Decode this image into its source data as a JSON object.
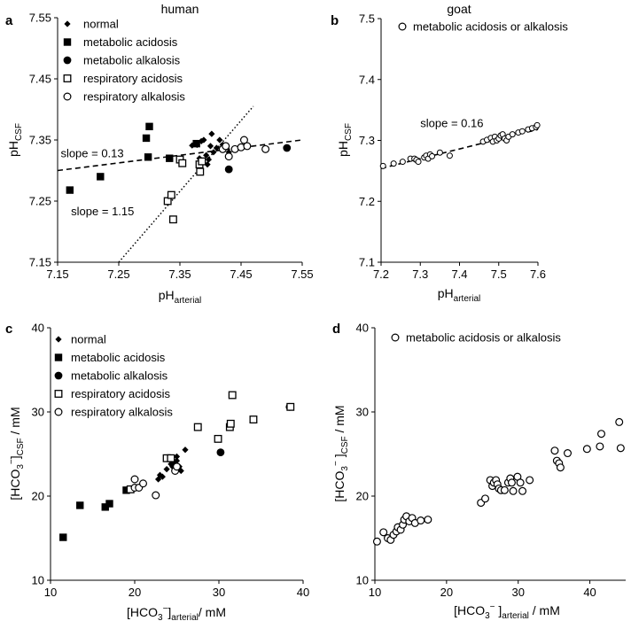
{
  "chart_data": [
    {
      "id": "a",
      "type": "scatter",
      "panel_label": "a",
      "title": "human",
      "xlabel": {
        "main": "pH",
        "sub": "arterial"
      },
      "ylabel": {
        "main": "pH",
        "sub": "CSF"
      },
      "xlim": [
        7.15,
        7.55
      ],
      "ylim": [
        7.15,
        7.55
      ],
      "xticks": [
        7.15,
        7.25,
        7.35,
        7.45,
        7.55
      ],
      "xtick_labels": [
        "7.15",
        "7.25",
        "7.35",
        "7.45",
        "7.55"
      ],
      "yticks": [
        7.15,
        7.25,
        7.35,
        7.45,
        7.55
      ],
      "ytick_labels": [
        "7.15",
        "7.25",
        "7.35",
        "7.45",
        "7.55"
      ],
      "legend": [
        {
          "marker": "diamond",
          "label": "normal"
        },
        {
          "marker": "square-filled",
          "label": "metabolic acidosis"
        },
        {
          "marker": "circle-filled",
          "label": "metabolic alkalosis"
        },
        {
          "marker": "square-open",
          "label": "respiratory acidosis"
        },
        {
          "marker": "circle-open",
          "label": "respiratory alkalosis"
        }
      ],
      "series": [
        {
          "name": "normal",
          "marker": "diamond",
          "points": [
            [
              7.37,
              7.341
            ],
            [
              7.378,
              7.342
            ],
            [
              7.385,
              7.348
            ],
            [
              7.389,
              7.35
            ],
            [
              7.393,
              7.325
            ],
            [
              7.395,
              7.31
            ],
            [
              7.397,
              7.318
            ],
            [
              7.4,
              7.34
            ],
            [
              7.402,
              7.36
            ],
            [
              7.405,
              7.33
            ],
            [
              7.41,
              7.337
            ],
            [
              7.415,
              7.35
            ],
            [
              7.42,
              7.342
            ],
            [
              7.43,
              7.33
            ],
            [
              7.382,
              7.32
            ]
          ]
        },
        {
          "name": "metabolic acidosis",
          "marker": "square-filled",
          "points": [
            [
              7.17,
              7.268
            ],
            [
              7.22,
              7.29
            ],
            [
              7.295,
              7.353
            ],
            [
              7.3,
              7.372
            ],
            [
              7.298,
              7.322
            ],
            [
              7.333,
              7.32
            ],
            [
              7.377,
              7.344
            ]
          ]
        },
        {
          "name": "metabolic alkalosis",
          "marker": "circle-filled",
          "points": [
            [
              7.43,
              7.302
            ],
            [
              7.525,
              7.337
            ]
          ]
        },
        {
          "name": "respiratory acidosis",
          "marker": "square-open",
          "points": [
            [
              7.33,
              7.25
            ],
            [
              7.336,
              7.26
            ],
            [
              7.339,
              7.22
            ],
            [
              7.35,
              7.318
            ],
            [
              7.354,
              7.312
            ],
            [
              7.382,
              7.31
            ],
            [
              7.383,
              7.298
            ],
            [
              7.386,
              7.315
            ]
          ]
        },
        {
          "name": "respiratory alkalosis",
          "marker": "circle-open",
          "points": [
            [
              7.42,
              7.335
            ],
            [
              7.425,
              7.34
            ],
            [
              7.43,
              7.323
            ],
            [
              7.44,
              7.335
            ],
            [
              7.45,
              7.338
            ],
            [
              7.455,
              7.35
            ],
            [
              7.46,
              7.34
            ],
            [
              7.49,
              7.335
            ]
          ]
        }
      ],
      "lines": [
        {
          "style": "dashed",
          "x": [
            7.15,
            7.55
          ],
          "y": [
            7.3,
            7.35
          ]
        },
        {
          "style": "dotted",
          "x": [
            7.25,
            7.47
          ],
          "y": [
            7.15,
            7.405
          ]
        }
      ],
      "annotations": [
        {
          "text": "slope = 0.13",
          "x": 7.155,
          "y": 7.322
        },
        {
          "text": "slope = 1.15",
          "x": 7.172,
          "y": 7.227
        }
      ]
    },
    {
      "id": "b",
      "type": "scatter",
      "panel_label": "b",
      "title": "goat",
      "xlabel": {
        "main": "pH",
        "sub": "arterial"
      },
      "ylabel": {
        "main": "pH",
        "sub": "CSF"
      },
      "xlim": [
        7.2,
        7.6
      ],
      "ylim": [
        7.1,
        7.5
      ],
      "xticks": [
        7.2,
        7.3,
        7.4,
        7.5,
        7.6
      ],
      "xtick_labels": [
        "7.2",
        "7.3",
        "7.4",
        "7.5",
        "7.6"
      ],
      "yticks": [
        7.1,
        7.2,
        7.3,
        7.4,
        7.5
      ],
      "ytick_labels": [
        "7.1",
        "7.2",
        "7.3",
        "7.4",
        "7.5"
      ],
      "legend": [
        {
          "marker": "circle-open",
          "label": "metabolic acidosis or alkalosis"
        }
      ],
      "series": [
        {
          "name": "metabolic acidosis or alkalosis",
          "marker": "circle-open-small",
          "points": [
            [
              7.205,
              7.258
            ],
            [
              7.232,
              7.262
            ],
            [
              7.255,
              7.265
            ],
            [
              7.275,
              7.27
            ],
            [
              7.285,
              7.27
            ],
            [
              7.29,
              7.268
            ],
            [
              7.295,
              7.265
            ],
            [
              7.31,
              7.272
            ],
            [
              7.315,
              7.275
            ],
            [
              7.32,
              7.27
            ],
            [
              7.325,
              7.277
            ],
            [
              7.33,
              7.274
            ],
            [
              7.35,
              7.28
            ],
            [
              7.375,
              7.275
            ],
            [
              7.46,
              7.298
            ],
            [
              7.47,
              7.301
            ],
            [
              7.48,
              7.304
            ],
            [
              7.485,
              7.298
            ],
            [
              7.49,
              7.306
            ],
            [
              7.495,
              7.3
            ],
            [
              7.5,
              7.303
            ],
            [
              7.505,
              7.308
            ],
            [
              7.51,
              7.31
            ],
            [
              7.515,
              7.303
            ],
            [
              7.52,
              7.3
            ],
            [
              7.525,
              7.306
            ],
            [
              7.535,
              7.31
            ],
            [
              7.55,
              7.313
            ],
            [
              7.56,
              7.315
            ],
            [
              7.575,
              7.318
            ],
            [
              7.585,
              7.32
            ],
            [
              7.595,
              7.322
            ],
            [
              7.598,
              7.325
            ]
          ]
        }
      ],
      "lines": [
        {
          "style": "dashed",
          "x": [
            7.2,
            7.6
          ],
          "y": [
            7.254,
            7.318
          ]
        }
      ],
      "annotations": [
        {
          "text": "slope = 0.16",
          "x": 7.3,
          "y": 7.322
        }
      ]
    },
    {
      "id": "c",
      "type": "scatter",
      "panel_label": "c",
      "title": "",
      "xlabel": {
        "main": "[HCO",
        "sup": "3",
        "sup2": "−",
        "after": "]",
        "sub": "arterial",
        "tail": "/ mM"
      },
      "ylabel": {
        "main": "[HCO",
        "sup": "3",
        "sup2": "−",
        "after": "]",
        "sub": "CSF",
        "tail": " / mM"
      },
      "xlim": [
        10,
        40
      ],
      "ylim": [
        10,
        40
      ],
      "xticks": [
        10,
        20,
        30,
        40
      ],
      "xtick_labels": [
        "10",
        "20",
        "30",
        "40"
      ],
      "yticks": [
        10,
        20,
        30,
        40
      ],
      "ytick_labels": [
        "10",
        "20",
        "30",
        "40"
      ],
      "legend": [
        {
          "marker": "diamond",
          "label": "normal"
        },
        {
          "marker": "square-filled",
          "label": "metabolic acidosis"
        },
        {
          "marker": "circle-filled",
          "label": "metabolic alkalosis"
        },
        {
          "marker": "square-open",
          "label": "respiratory acidosis"
        },
        {
          "marker": "circle-open",
          "label": "respiratory alkalosis"
        }
      ],
      "series": [
        {
          "name": "normal",
          "marker": "diamond",
          "points": [
            [
              22.8,
              22.0
            ],
            [
              23.0,
              22.5
            ],
            [
              23.8,
              23.2
            ],
            [
              24.3,
              23.8
            ],
            [
              24.5,
              23.5
            ],
            [
              24.8,
              24.0
            ],
            [
              25.0,
              24.2
            ],
            [
              25.3,
              23.5
            ],
            [
              25.5,
              23.0
            ],
            [
              26.0,
              25.5
            ],
            [
              25.0,
              24.7
            ],
            [
              23.3,
              22.3
            ]
          ]
        },
        {
          "name": "metabolic acidosis",
          "marker": "square-filled",
          "points": [
            [
              11.5,
              15.1
            ],
            [
              13.5,
              18.9
            ],
            [
              16.5,
              18.7
            ],
            [
              17.0,
              19.1
            ],
            [
              19.0,
              20.7
            ]
          ]
        },
        {
          "name": "metabolic alkalosis",
          "marker": "circle-filled",
          "points": [
            [
              30.2,
              25.2
            ],
            [
              38.4,
              30.6
            ]
          ]
        },
        {
          "name": "respiratory acidosis",
          "marker": "square-open",
          "points": [
            [
              19.5,
              20.8
            ],
            [
              23.8,
              24.5
            ],
            [
              24.3,
              24.5
            ],
            [
              27.5,
              28.2
            ],
            [
              29.9,
              26.8
            ],
            [
              31.3,
              28.2
            ],
            [
              31.4,
              28.6
            ],
            [
              31.6,
              32.0
            ],
            [
              34.1,
              29.1
            ],
            [
              38.5,
              30.6
            ]
          ]
        },
        {
          "name": "respiratory alkalosis",
          "marker": "circle-open",
          "points": [
            [
              20.0,
              21.0
            ],
            [
              20.0,
              22.0
            ],
            [
              20.5,
              21.0
            ],
            [
              21.0,
              21.5
            ],
            [
              22.5,
              20.1
            ],
            [
              24.8,
              23.0
            ],
            [
              25.0,
              23.5
            ]
          ]
        }
      ],
      "lines": [],
      "annotations": []
    },
    {
      "id": "d",
      "type": "scatter",
      "panel_label": "d",
      "title": "",
      "xlabel": {
        "main": "[HCO",
        "sup": "3",
        "sup2": "−",
        "after": " ]",
        "sub": "arterial",
        "tail": " / mM"
      },
      "ylabel": {
        "main": "[HCO",
        "sup": "3",
        "sup2": "−",
        "after": " ]",
        "sub": "CSF",
        "tail": " / mM"
      },
      "xlim": [
        10,
        45
      ],
      "ylim": [
        10,
        40
      ],
      "xticks": [
        10,
        20,
        30,
        40
      ],
      "xtick_labels": [
        "10",
        "20",
        "30",
        "40"
      ],
      "yticks": [
        10,
        20,
        30,
        40
      ],
      "ytick_labels": [
        "10",
        "20",
        "30",
        "40"
      ],
      "legend": [
        {
          "marker": "circle-open",
          "label": "metabolic acidosis or alkalosis"
        }
      ],
      "series": [
        {
          "name": "metabolic acidosis or alkalosis",
          "marker": "circle-open",
          "points": [
            [
              10.3,
              14.6
            ],
            [
              11.2,
              15.7
            ],
            [
              11.8,
              15.0
            ],
            [
              12.2,
              14.8
            ],
            [
              12.6,
              15.4
            ],
            [
              13.0,
              15.8
            ],
            [
              13.2,
              16.3
            ],
            [
              13.6,
              16.0
            ],
            [
              13.9,
              16.6
            ],
            [
              14.1,
              17.2
            ],
            [
              14.4,
              17.6
            ],
            [
              14.8,
              17.0
            ],
            [
              15.2,
              17.4
            ],
            [
              15.6,
              16.8
            ],
            [
              16.4,
              17.1
            ],
            [
              17.4,
              17.2
            ],
            [
              24.8,
              19.2
            ],
            [
              25.4,
              19.7
            ],
            [
              26.1,
              21.9
            ],
            [
              26.4,
              21.2
            ],
            [
              26.6,
              21.6
            ],
            [
              26.9,
              21.9
            ],
            [
              27.1,
              21.4
            ],
            [
              27.3,
              20.9
            ],
            [
              27.6,
              20.7
            ],
            [
              28.1,
              20.7
            ],
            [
              28.6,
              21.6
            ],
            [
              28.9,
              22.1
            ],
            [
              29.1,
              21.6
            ],
            [
              29.3,
              20.6
            ],
            [
              29.9,
              22.3
            ],
            [
              30.3,
              21.6
            ],
            [
              30.6,
              20.6
            ],
            [
              31.6,
              21.9
            ],
            [
              35.1,
              25.4
            ],
            [
              35.4,
              24.2
            ],
            [
              35.7,
              23.9
            ],
            [
              35.9,
              23.4
            ],
            [
              36.9,
              25.1
            ],
            [
              39.6,
              25.6
            ],
            [
              41.4,
              25.9
            ],
            [
              41.6,
              27.4
            ],
            [
              44.1,
              28.8
            ],
            [
              44.3,
              25.7
            ]
          ]
        }
      ],
      "lines": [],
      "annotations": []
    }
  ]
}
